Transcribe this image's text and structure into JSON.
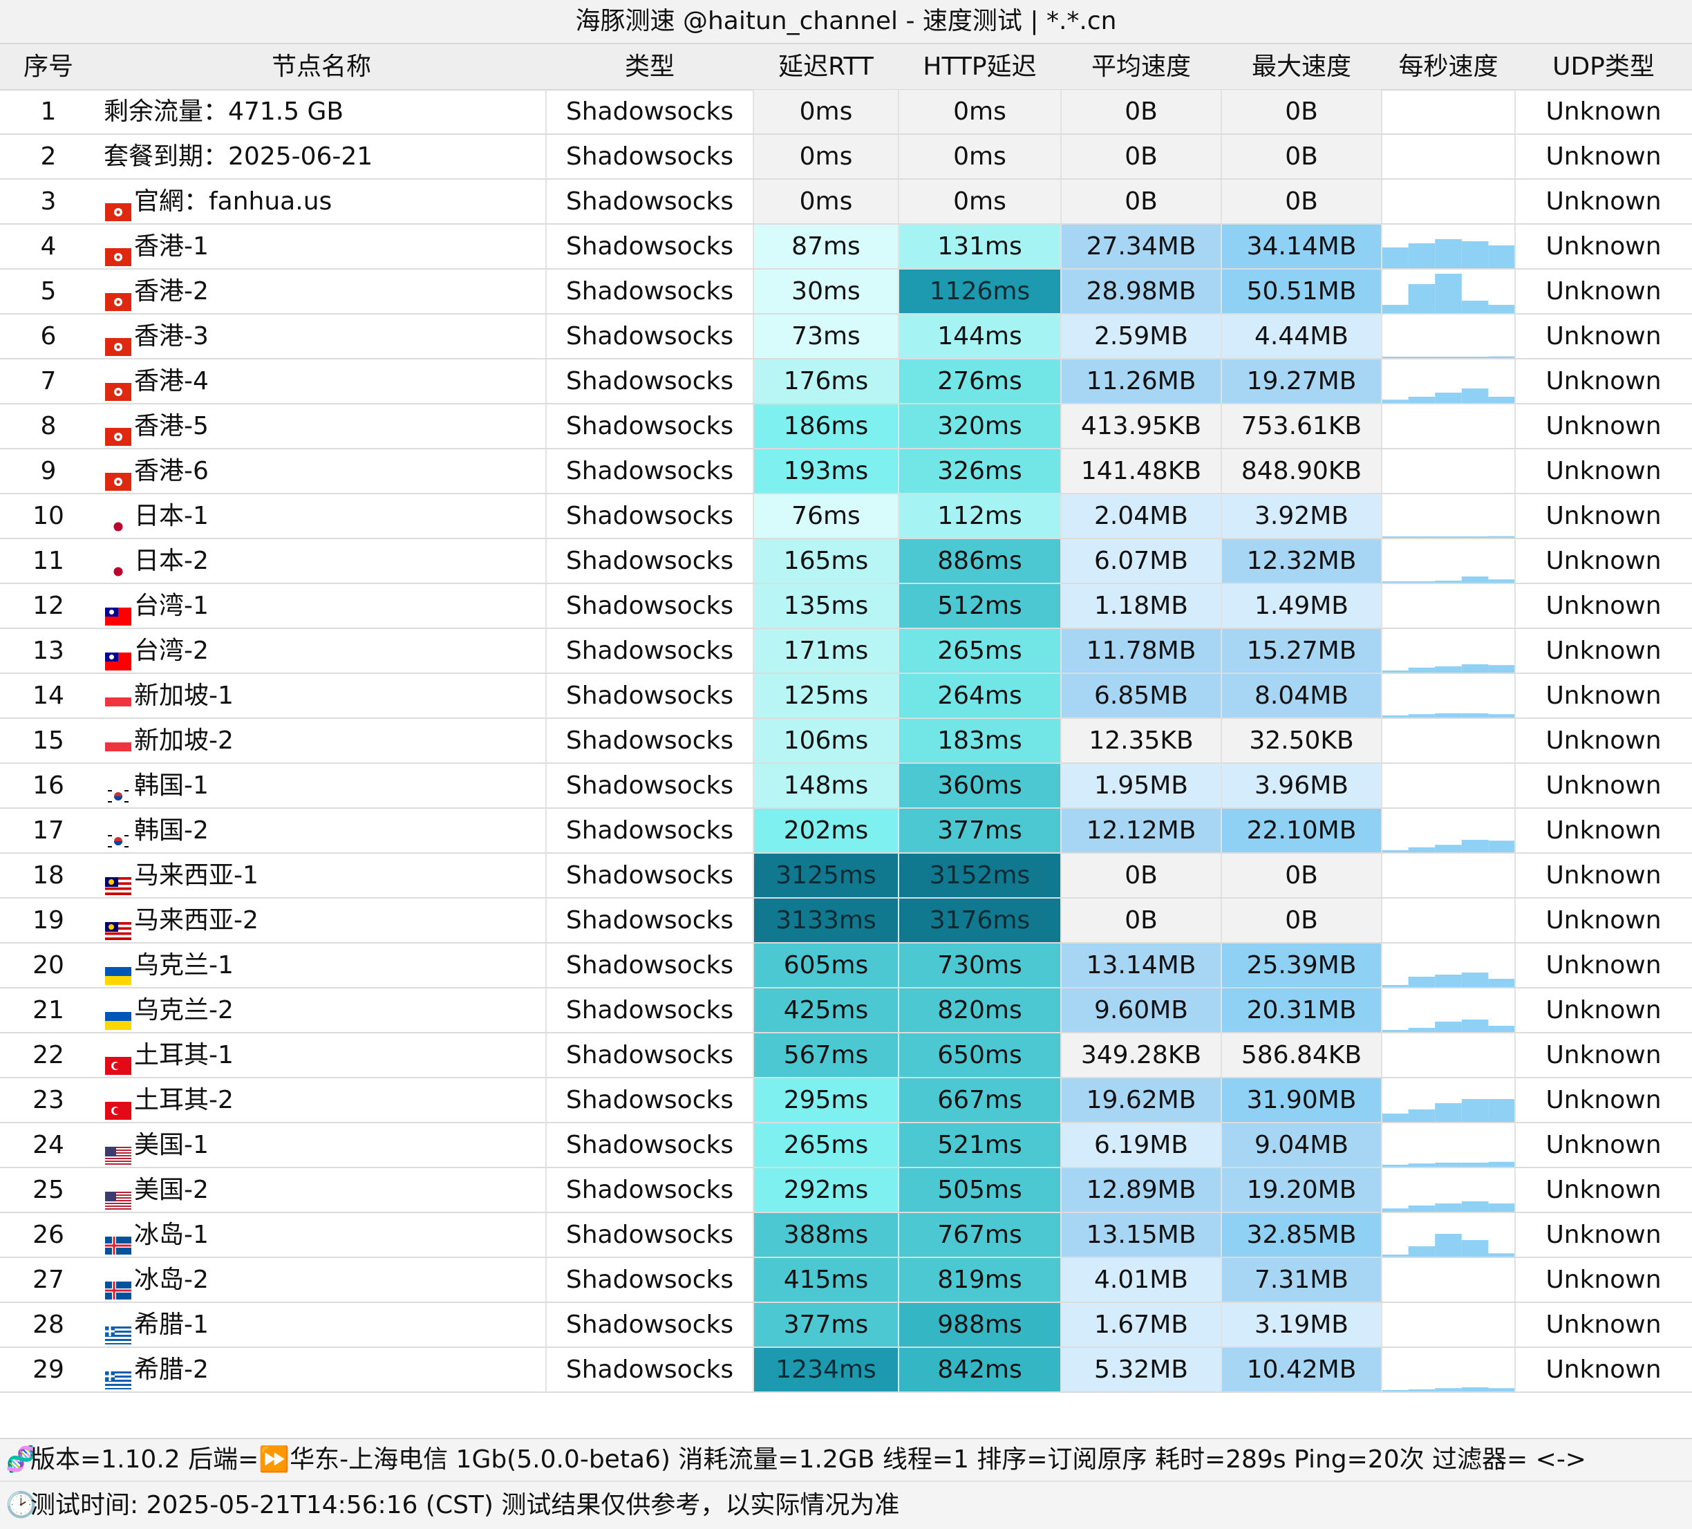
{
  "title": "海豚测速 @haitun_channel - 速度测试 | *.*.cn",
  "headers": [
    "序号",
    "节点名称",
    "类型",
    "延迟RTT",
    "HTTP延迟",
    "平均速度",
    "最大速度",
    "每秒速度",
    "UDP类型"
  ],
  "rows": [
    {
      "idx": "1",
      "flag": "",
      "name": "剩余流量：471.5 GB",
      "type": "Shadowsocks",
      "rtt": "0ms",
      "http": "0ms",
      "avg": "0B",
      "max": "0B",
      "udp": "Unknown",
      "rttc": "#f2f2f2",
      "httpc": "#f2f2f2",
      "avgc": "#f2f2f2",
      "maxc": "#f2f2f2",
      "spark": []
    },
    {
      "idx": "2",
      "flag": "",
      "name": "套餐到期：2025-06-21",
      "type": "Shadowsocks",
      "rtt": "0ms",
      "http": "0ms",
      "avg": "0B",
      "max": "0B",
      "udp": "Unknown",
      "rttc": "#f2f2f2",
      "httpc": "#f2f2f2",
      "avgc": "#f2f2f2",
      "maxc": "#f2f2f2",
      "spark": []
    },
    {
      "idx": "3",
      "flag": "hk",
      "name": "官網：fanhua.us",
      "type": "Shadowsocks",
      "rtt": "0ms",
      "http": "0ms",
      "avg": "0B",
      "max": "0B",
      "udp": "Unknown",
      "rttc": "#f2f2f2",
      "httpc": "#f2f2f2",
      "avgc": "#f2f2f2",
      "maxc": "#f2f2f2",
      "spark": []
    },
    {
      "idx": "4",
      "flag": "hk",
      "name": "香港-1",
      "type": "Shadowsocks",
      "rtt": "87ms",
      "http": "131ms",
      "avg": "27.34MB",
      "max": "34.14MB",
      "udp": "Unknown",
      "rttc": "#d8fbfb",
      "httpc": "#a6f3f3",
      "avgc": "#a6d6f4",
      "maxc": "#8fd0f5",
      "spark": [
        0.5,
        0.6,
        0.7,
        0.65,
        0.55
      ]
    },
    {
      "idx": "5",
      "flag": "hk",
      "name": "香港-2",
      "type": "Shadowsocks",
      "rtt": "30ms",
      "http": "1126ms",
      "avg": "28.98MB",
      "max": "50.51MB",
      "udp": "Unknown",
      "rttc": "#d8fbfb",
      "httpc": "#1d9ab0",
      "avgc": "#a6d6f4",
      "maxc": "#8fd0f5",
      "spark": [
        0.2,
        0.7,
        0.95,
        0.3,
        0.2
      ]
    },
    {
      "idx": "6",
      "flag": "hk",
      "name": "香港-3",
      "type": "Shadowsocks",
      "rtt": "73ms",
      "http": "144ms",
      "avg": "2.59MB",
      "max": "4.44MB",
      "udp": "Unknown",
      "rttc": "#d8fbfb",
      "httpc": "#a6f3f3",
      "avgc": "#d4ecfb",
      "maxc": "#d4ecfb",
      "spark": [
        0.02,
        0.02,
        0.02,
        0.03,
        0.04
      ]
    },
    {
      "idx": "7",
      "flag": "hk",
      "name": "香港-4",
      "type": "Shadowsocks",
      "rtt": "176ms",
      "http": "276ms",
      "avg": "11.26MB",
      "max": "19.27MB",
      "udp": "Unknown",
      "rttc": "#b8f5f5",
      "httpc": "#72e6e6",
      "avgc": "#a6d6f4",
      "maxc": "#a6d6f4",
      "spark": [
        0.08,
        0.15,
        0.25,
        0.35,
        0.15
      ]
    },
    {
      "idx": "8",
      "flag": "hk",
      "name": "香港-5",
      "type": "Shadowsocks",
      "rtt": "186ms",
      "http": "320ms",
      "avg": "413.95KB",
      "max": "753.61KB",
      "udp": "Unknown",
      "rttc": "#7ef0f0",
      "httpc": "#72e6e6",
      "avgc": "#f2f2f2",
      "maxc": "#f2f2f2",
      "spark": []
    },
    {
      "idx": "9",
      "flag": "hk",
      "name": "香港-6",
      "type": "Shadowsocks",
      "rtt": "193ms",
      "http": "326ms",
      "avg": "141.48KB",
      "max": "848.90KB",
      "udp": "Unknown",
      "rttc": "#7ef0f0",
      "httpc": "#72e6e6",
      "avgc": "#f2f2f2",
      "maxc": "#f2f2f2",
      "spark": []
    },
    {
      "idx": "10",
      "flag": "jp",
      "name": "日本-1",
      "type": "Shadowsocks",
      "rtt": "76ms",
      "http": "112ms",
      "avg": "2.04MB",
      "max": "3.92MB",
      "udp": "Unknown",
      "rttc": "#d8fbfb",
      "httpc": "#a6f3f3",
      "avgc": "#d4ecfb",
      "maxc": "#d4ecfb",
      "spark": [
        0.0,
        0.0,
        0.02,
        0.03,
        0.04
      ]
    },
    {
      "idx": "11",
      "flag": "jp",
      "name": "日本-2",
      "type": "Shadowsocks",
      "rtt": "165ms",
      "http": "886ms",
      "avg": "6.07MB",
      "max": "12.32MB",
      "udp": "Unknown",
      "rttc": "#b8f5f5",
      "httpc": "#4bc8d1",
      "avgc": "#d4ecfb",
      "maxc": "#a6d6f4",
      "spark": [
        0.02,
        0.03,
        0.05,
        0.15,
        0.08
      ]
    },
    {
      "idx": "12",
      "flag": "tw",
      "name": "台湾-1",
      "type": "Shadowsocks",
      "rtt": "135ms",
      "http": "512ms",
      "avg": "1.18MB",
      "max": "1.49MB",
      "udp": "Unknown",
      "rttc": "#b8f5f5",
      "httpc": "#4bc8d1",
      "avgc": "#d4ecfb",
      "maxc": "#d4ecfb",
      "spark": []
    },
    {
      "idx": "13",
      "flag": "tw",
      "name": "台湾-2",
      "type": "Shadowsocks",
      "rtt": "171ms",
      "http": "265ms",
      "avg": "11.78MB",
      "max": "15.27MB",
      "udp": "Unknown",
      "rttc": "#b8f5f5",
      "httpc": "#72e6e6",
      "avgc": "#a6d6f4",
      "maxc": "#a6d6f4",
      "spark": [
        0.05,
        0.12,
        0.15,
        0.2,
        0.18
      ]
    },
    {
      "idx": "14",
      "flag": "sg",
      "name": "新加坡-1",
      "type": "Shadowsocks",
      "rtt": "125ms",
      "http": "264ms",
      "avg": "6.85MB",
      "max": "8.04MB",
      "udp": "Unknown",
      "rttc": "#b8f5f5",
      "httpc": "#72e6e6",
      "avgc": "#a6d6f4",
      "maxc": "#a6d6f4",
      "spark": [
        0.05,
        0.08,
        0.1,
        0.1,
        0.08
      ]
    },
    {
      "idx": "15",
      "flag": "sg",
      "name": "新加坡-2",
      "type": "Shadowsocks",
      "rtt": "106ms",
      "http": "183ms",
      "avg": "12.35KB",
      "max": "32.50KB",
      "udp": "Unknown",
      "rttc": "#b8f5f5",
      "httpc": "#72e6e6",
      "avgc": "#f2f2f2",
      "maxc": "#f2f2f2",
      "spark": []
    },
    {
      "idx": "16",
      "flag": "kr",
      "name": "韩国-1",
      "type": "Shadowsocks",
      "rtt": "148ms",
      "http": "360ms",
      "avg": "1.95MB",
      "max": "3.96MB",
      "udp": "Unknown",
      "rttc": "#b8f5f5",
      "httpc": "#4bc8d1",
      "avgc": "#d4ecfb",
      "maxc": "#d4ecfb",
      "spark": []
    },
    {
      "idx": "17",
      "flag": "kr",
      "name": "韩国-2",
      "type": "Shadowsocks",
      "rtt": "202ms",
      "http": "377ms",
      "avg": "12.12MB",
      "max": "22.10MB",
      "udp": "Unknown",
      "rttc": "#7ef0f0",
      "httpc": "#4bc8d1",
      "avgc": "#a6d6f4",
      "maxc": "#8fd0f5",
      "spark": [
        0.05,
        0.12,
        0.18,
        0.3,
        0.28
      ]
    },
    {
      "idx": "18",
      "flag": "my",
      "name": "马来西亚-1",
      "type": "Shadowsocks",
      "rtt": "3125ms",
      "http": "3152ms",
      "avg": "0B",
      "max": "0B",
      "udp": "Unknown",
      "rttc": "#10788f",
      "httpc": "#10788f",
      "avgc": "#f2f2f2",
      "maxc": "#f2f2f2",
      "spark": []
    },
    {
      "idx": "19",
      "flag": "my",
      "name": "马来西亚-2",
      "type": "Shadowsocks",
      "rtt": "3133ms",
      "http": "3176ms",
      "avg": "0B",
      "max": "0B",
      "udp": "Unknown",
      "rttc": "#10788f",
      "httpc": "#10788f",
      "avgc": "#f2f2f2",
      "maxc": "#f2f2f2",
      "spark": []
    },
    {
      "idx": "20",
      "flag": "ua",
      "name": "乌克兰-1",
      "type": "Shadowsocks",
      "rtt": "605ms",
      "http": "730ms",
      "avg": "13.14MB",
      "max": "25.39MB",
      "udp": "Unknown",
      "rttc": "#4bc8d1",
      "httpc": "#4bc8d1",
      "avgc": "#a6d6f4",
      "maxc": "#8fd0f5",
      "spark": [
        0.05,
        0.25,
        0.3,
        0.35,
        0.2
      ]
    },
    {
      "idx": "21",
      "flag": "ua",
      "name": "乌克兰-2",
      "type": "Shadowsocks",
      "rtt": "425ms",
      "http": "820ms",
      "avg": "9.60MB",
      "max": "20.31MB",
      "udp": "Unknown",
      "rttc": "#4bc8d1",
      "httpc": "#4bc8d1",
      "avgc": "#a6d6f4",
      "maxc": "#8fd0f5",
      "spark": [
        0.05,
        0.1,
        0.25,
        0.3,
        0.15
      ]
    },
    {
      "idx": "22",
      "flag": "tr",
      "name": "土耳其-1",
      "type": "Shadowsocks",
      "rtt": "567ms",
      "http": "650ms",
      "avg": "349.28KB",
      "max": "586.84KB",
      "udp": "Unknown",
      "rttc": "#4bc8d1",
      "httpc": "#4bc8d1",
      "avgc": "#f2f2f2",
      "maxc": "#f2f2f2",
      "spark": []
    },
    {
      "idx": "23",
      "flag": "tr",
      "name": "土耳其-2",
      "type": "Shadowsocks",
      "rtt": "295ms",
      "http": "667ms",
      "avg": "19.62MB",
      "max": "31.90MB",
      "udp": "Unknown",
      "rttc": "#7ef0f0",
      "httpc": "#4bc8d1",
      "avgc": "#a6d6f4",
      "maxc": "#8fd0f5",
      "spark": [
        0.2,
        0.3,
        0.45,
        0.55,
        0.55
      ]
    },
    {
      "idx": "24",
      "flag": "us",
      "name": "美国-1",
      "type": "Shadowsocks",
      "rtt": "265ms",
      "http": "521ms",
      "avg": "6.19MB",
      "max": "9.04MB",
      "udp": "Unknown",
      "rttc": "#7ef0f0",
      "httpc": "#4bc8d1",
      "avgc": "#d4ecfb",
      "maxc": "#a6d6f4",
      "spark": [
        0.05,
        0.08,
        0.1,
        0.1,
        0.12
      ]
    },
    {
      "idx": "25",
      "flag": "us",
      "name": "美国-2",
      "type": "Shadowsocks",
      "rtt": "292ms",
      "http": "505ms",
      "avg": "12.89MB",
      "max": "19.20MB",
      "udp": "Unknown",
      "rttc": "#7ef0f0",
      "httpc": "#4bc8d1",
      "avgc": "#a6d6f4",
      "maxc": "#a6d6f4",
      "spark": [
        0.08,
        0.15,
        0.2,
        0.25,
        0.2
      ]
    },
    {
      "idx": "26",
      "flag": "is",
      "name": "冰岛-1",
      "type": "Shadowsocks",
      "rtt": "388ms",
      "http": "767ms",
      "avg": "13.15MB",
      "max": "32.85MB",
      "udp": "Unknown",
      "rttc": "#4bc8d1",
      "httpc": "#4bc8d1",
      "avgc": "#a6d6f4",
      "maxc": "#8fd0f5",
      "spark": [
        0.05,
        0.25,
        0.55,
        0.4,
        0.08
      ]
    },
    {
      "idx": "27",
      "flag": "is",
      "name": "冰岛-2",
      "type": "Shadowsocks",
      "rtt": "415ms",
      "http": "819ms",
      "avg": "4.01MB",
      "max": "7.31MB",
      "udp": "Unknown",
      "rttc": "#4bc8d1",
      "httpc": "#4bc8d1",
      "avgc": "#d4ecfb",
      "maxc": "#a6d6f4",
      "spark": []
    },
    {
      "idx": "28",
      "flag": "gr",
      "name": "希腊-1",
      "type": "Shadowsocks",
      "rtt": "377ms",
      "http": "988ms",
      "avg": "1.67MB",
      "max": "3.19MB",
      "udp": "Unknown",
      "rttc": "#4bc8d1",
      "httpc": "#35b6c4",
      "avgc": "#d4ecfb",
      "maxc": "#d4ecfb",
      "spark": []
    },
    {
      "idx": "29",
      "flag": "gr",
      "name": "希腊-2",
      "type": "Shadowsocks",
      "rtt": "1234ms",
      "http": "842ms",
      "avg": "5.32MB",
      "max": "10.42MB",
      "udp": "Unknown",
      "rttc": "#1d9ab0",
      "httpc": "#35b6c4",
      "avgc": "#d4ecfb",
      "maxc": "#a6d6f4",
      "spark": [
        0.03,
        0.05,
        0.08,
        0.1,
        0.08
      ]
    }
  ],
  "footer": {
    "line1": "版本=1.10.2  后端=⏩华东-上海电信 1Gb(5.0.0-beta6) 消耗流量=1.2GB  线程=1  排序=订阅原序  耗时=289s  Ping=20次  过滤器= <->",
    "line2": "测试时间: 2025-05-21T14:56:16 (CST)  测试结果仅供参考，以实际情况为准"
  },
  "colors": {
    "spark": "#8fd0f5",
    "header_bg": "#eeeeee"
  }
}
